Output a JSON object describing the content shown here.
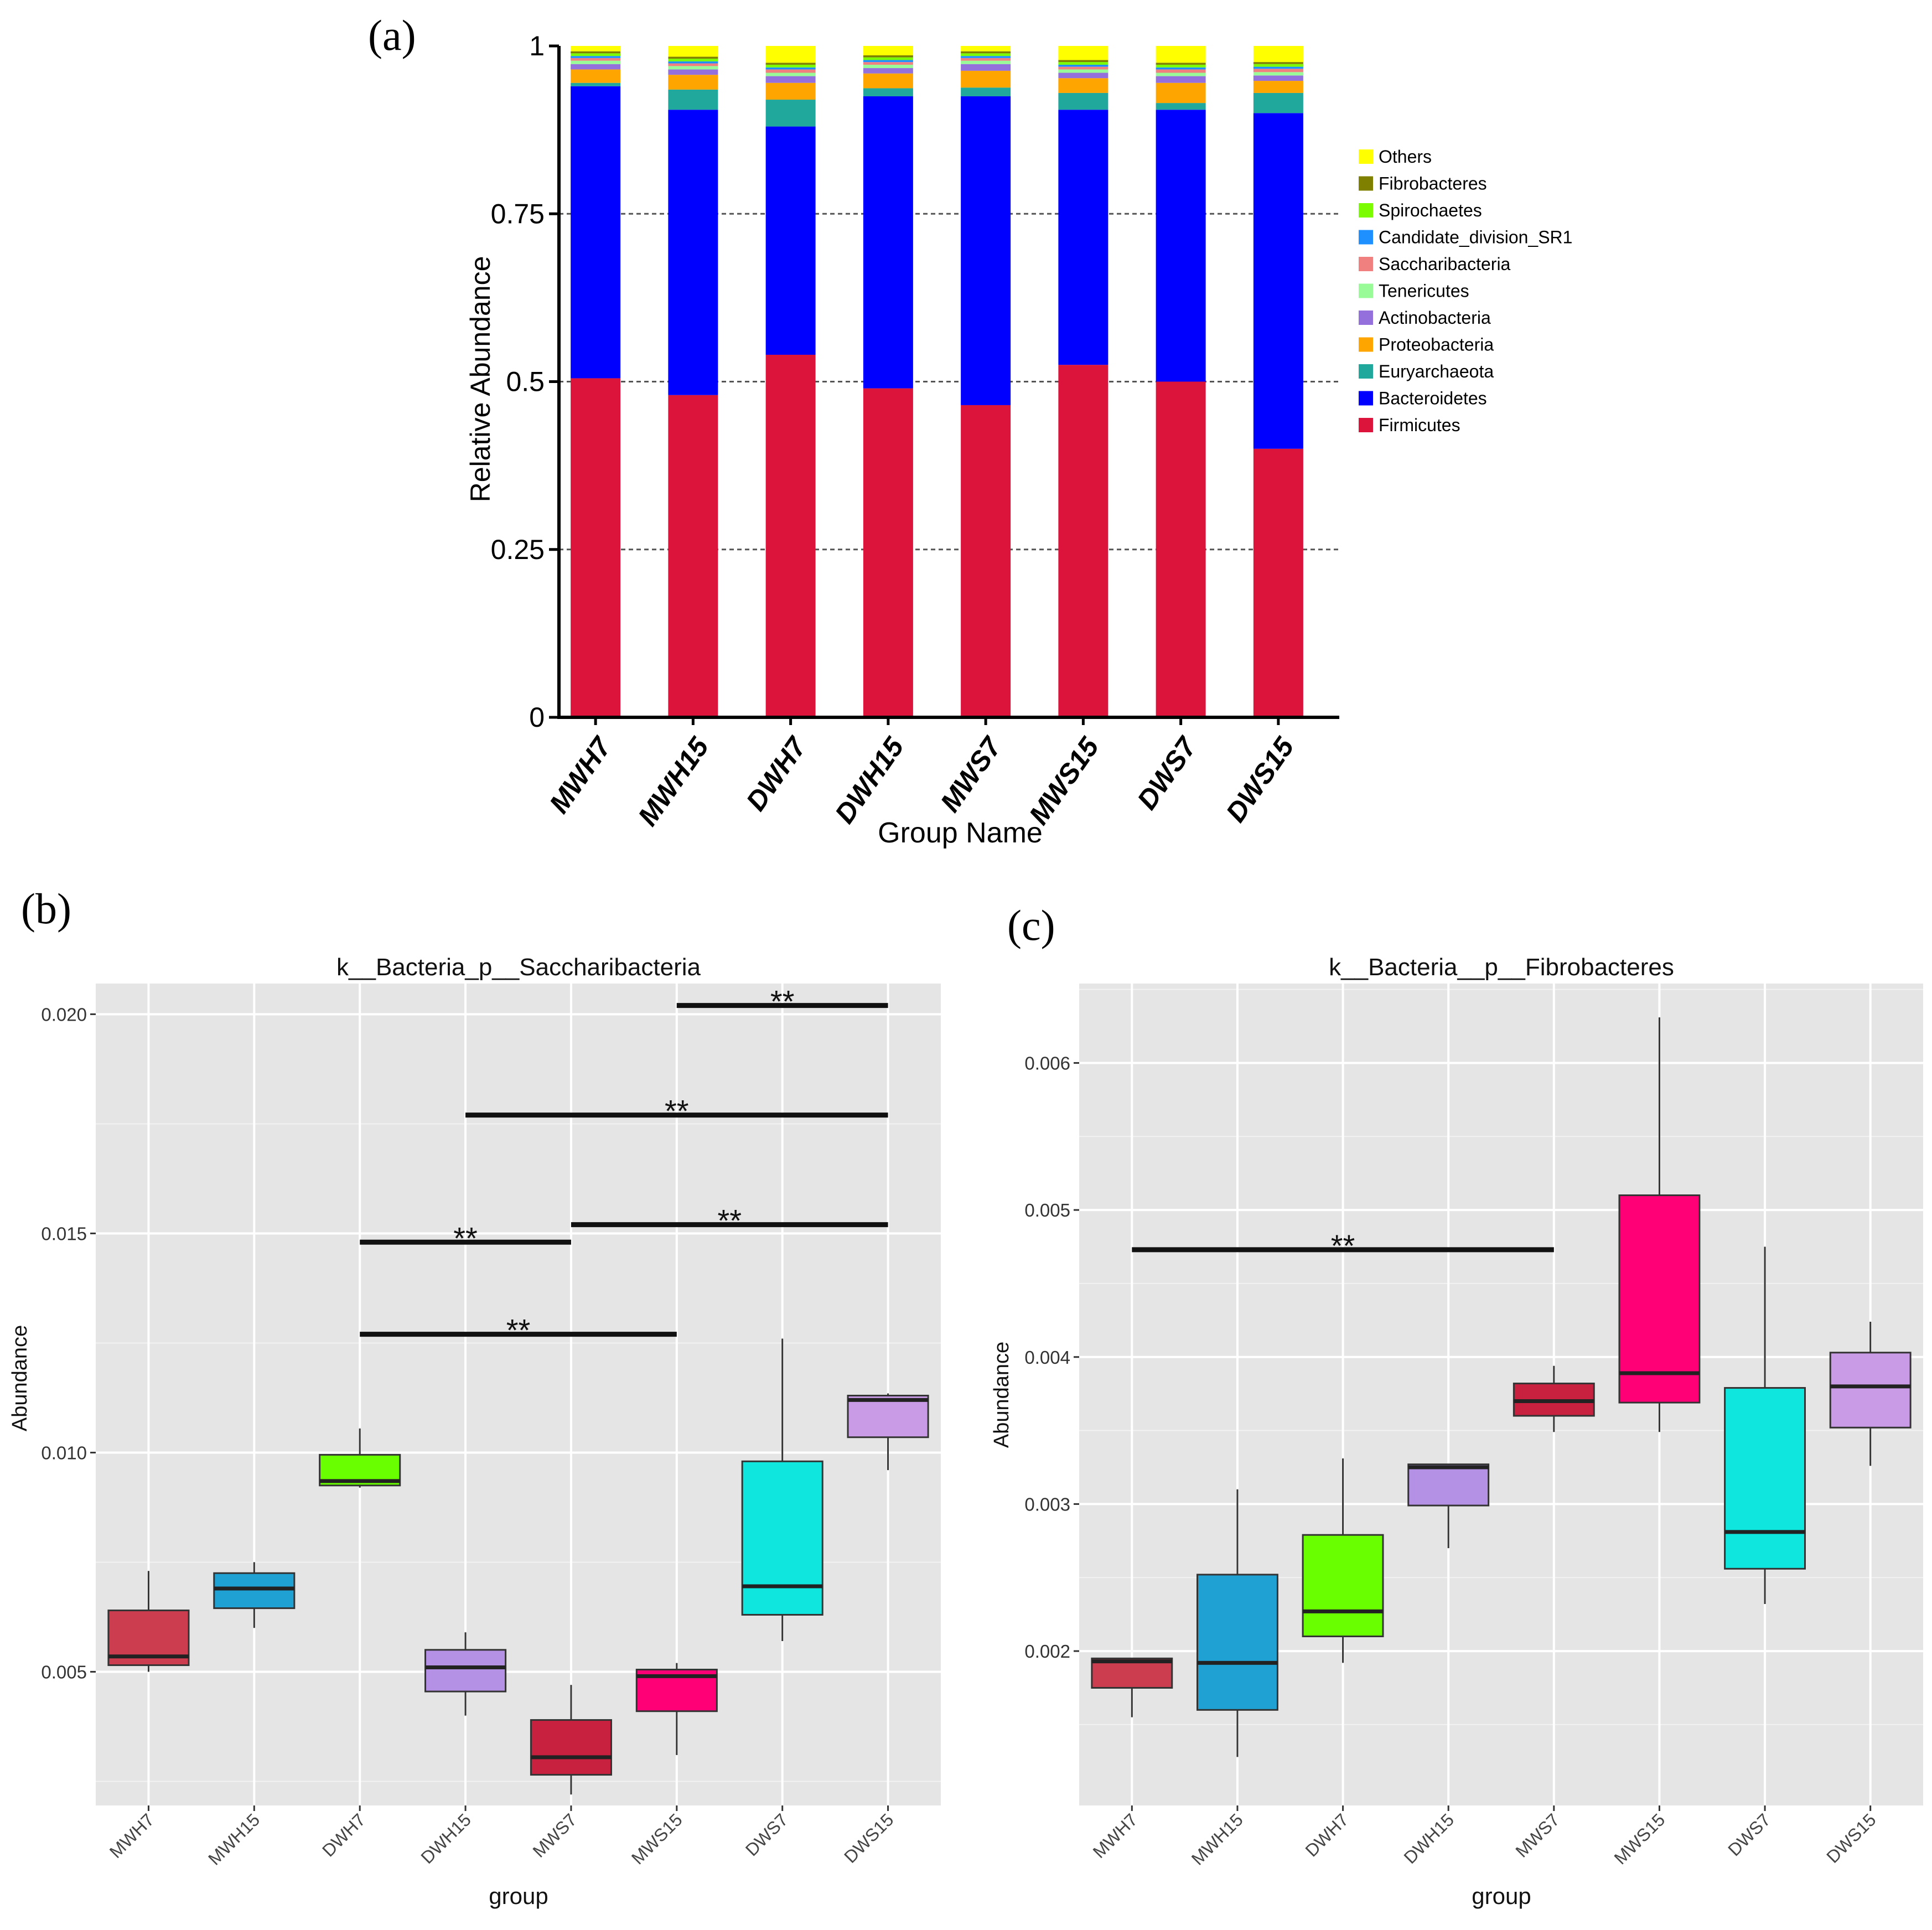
{
  "panel_labels": {
    "a": "(a)",
    "b": "(b)",
    "c": "(c)"
  },
  "chart_data": [
    {
      "id": "a",
      "type": "bar",
      "stacked": true,
      "title": "",
      "xlabel": "Group Name",
      "ylabel": "Relative Abundance",
      "ylim": [
        0,
        1
      ],
      "yticks": [
        0,
        0.25,
        0.5,
        0.75,
        1
      ],
      "ytick_labels": [
        "0",
        "0.25",
        "0.5",
        "0.75",
        "1"
      ],
      "grid": "dashed at 0.25, 0.5, 0.75",
      "legend_position": "right",
      "categories": [
        "MWH7",
        "MWH15",
        "DWH7",
        "DWH15",
        "MWS7",
        "MWS15",
        "DWS7",
        "DWS15"
      ],
      "series": [
        {
          "name": "Firmicutes",
          "color": "#dc143c",
          "values": [
            0.505,
            0.48,
            0.54,
            0.49,
            0.465,
            0.525,
            0.5,
            0.4
          ]
        },
        {
          "name": "Bacteroidetes",
          "color": "#0000ff",
          "values": [
            0.435,
            0.425,
            0.34,
            0.435,
            0.46,
            0.38,
            0.405,
            0.5
          ]
        },
        {
          "name": "Euryarchaeota",
          "color": "#20a89c",
          "values": [
            0.005,
            0.03,
            0.04,
            0.012,
            0.013,
            0.025,
            0.01,
            0.03
          ]
        },
        {
          "name": "Proteobacteria",
          "color": "#ffa500",
          "values": [
            0.02,
            0.022,
            0.025,
            0.022,
            0.025,
            0.022,
            0.03,
            0.018
          ]
        },
        {
          "name": "Actinobacteria",
          "color": "#9370db",
          "values": [
            0.008,
            0.008,
            0.01,
            0.008,
            0.01,
            0.008,
            0.01,
            0.008
          ]
        },
        {
          "name": "Tenericutes",
          "color": "#98fb98",
          "values": [
            0.005,
            0.005,
            0.005,
            0.005,
            0.005,
            0.005,
            0.005,
            0.005
          ]
        },
        {
          "name": "Saccharibacteria",
          "color": "#f08080",
          "values": [
            0.004,
            0.004,
            0.005,
            0.004,
            0.004,
            0.004,
            0.005,
            0.005
          ]
        },
        {
          "name": "Candidate_division_SR1",
          "color": "#1e90ff",
          "values": [
            0.003,
            0.003,
            0.003,
            0.003,
            0.003,
            0.003,
            0.003,
            0.003
          ]
        },
        {
          "name": "Spirochaetes",
          "color": "#7cfc00",
          "values": [
            0.004,
            0.004,
            0.004,
            0.004,
            0.004,
            0.004,
            0.004,
            0.004
          ]
        },
        {
          "name": "Fibrobacteres",
          "color": "#808000",
          "values": [
            0.003,
            0.003,
            0.003,
            0.003,
            0.003,
            0.003,
            0.003,
            0.003
          ]
        },
        {
          "name": "Others",
          "color": "#ffff00",
          "values": [
            0.008,
            0.016,
            0.025,
            0.014,
            0.008,
            0.021,
            0.025,
            0.024
          ]
        }
      ],
      "legend_order": [
        "Others",
        "Fibrobacteres",
        "Spirochaetes",
        "Candidate_division_SR1",
        "Saccharibacteria",
        "Tenericutes",
        "Actinobacteria",
        "Proteobacteria",
        "Euryarchaeota",
        "Bacteroidetes",
        "Firmicutes"
      ]
    },
    {
      "id": "b",
      "type": "boxplot",
      "title": "k__Bacteria_p__Saccharibacteria",
      "xlabel": "group",
      "ylabel": "Abundance",
      "ylim": [
        0.00195,
        0.0207
      ],
      "yticks": [
        0.005,
        0.01,
        0.015,
        0.02
      ],
      "ytick_labels": [
        "0.005",
        "0.010",
        "0.015",
        "0.020"
      ],
      "categories": [
        "MWH7",
        "MWH15",
        "DWH7",
        "DWH15",
        "MWS7",
        "MWS15",
        "DWS7",
        "DWS15"
      ],
      "boxes": [
        {
          "min": 0.005,
          "q1": 0.00515,
          "median": 0.00535,
          "q3": 0.0064,
          "max": 0.0073,
          "color": "#cc3d50"
        },
        {
          "min": 0.006,
          "q1": 0.00645,
          "median": 0.0069,
          "q3": 0.00725,
          "max": 0.0075,
          "color": "#1fa1d4"
        },
        {
          "min": 0.0092,
          "q1": 0.00925,
          "median": 0.00935,
          "q3": 0.00995,
          "max": 0.01055,
          "color": "#6aff00"
        },
        {
          "min": 0.004,
          "q1": 0.00455,
          "median": 0.0051,
          "q3": 0.0055,
          "max": 0.0059,
          "color": "#b591e6"
        },
        {
          "min": 0.0022,
          "q1": 0.00265,
          "median": 0.00305,
          "q3": 0.0039,
          "max": 0.0047,
          "color": "#c8203f"
        },
        {
          "min": 0.0031,
          "q1": 0.0041,
          "median": 0.0049,
          "q3": 0.00505,
          "max": 0.0052,
          "color": "#ff0077"
        },
        {
          "min": 0.0057,
          "q1": 0.0063,
          "median": 0.00695,
          "q3": 0.0098,
          "max": 0.0126,
          "color": "#0ee6de"
        },
        {
          "min": 0.0096,
          "q1": 0.01035,
          "median": 0.0112,
          "q3": 0.0113,
          "max": 0.01135,
          "color": "#c99ae6"
        }
      ],
      "significance": [
        {
          "from": "MWS15",
          "to": "DWS15",
          "y": 0.0202,
          "label": "**"
        },
        {
          "from": "DWH15",
          "to": "DWS15",
          "y": 0.0177,
          "label": "**"
        },
        {
          "from": "DWH7",
          "to": "MWS7",
          "y": 0.0148,
          "label": "**"
        },
        {
          "from": "MWS7",
          "to": "DWS15",
          "y": 0.0152,
          "label": "**"
        },
        {
          "from": "DWH7",
          "to": "MWS15",
          "y": 0.0127,
          "label": "**"
        }
      ]
    },
    {
      "id": "c",
      "type": "boxplot",
      "title": "k__Bacteria__p__Fibrobacteres",
      "xlabel": "group",
      "ylabel": "Abundance",
      "ylim": [
        0.00095,
        0.00654
      ],
      "yticks": [
        0.002,
        0.003,
        0.004,
        0.005,
        0.006
      ],
      "ytick_labels": [
        "0.002",
        "0.003",
        "0.004",
        "0.005",
        "0.006"
      ],
      "categories": [
        "MWH7",
        "MWH15",
        "DWH7",
        "DWH15",
        "MWS7",
        "MWS15",
        "DWS7",
        "DWS15"
      ],
      "boxes": [
        {
          "min": 0.00155,
          "q1": 0.00175,
          "median": 0.00193,
          "q3": 0.00195,
          "max": 0.00195,
          "color": "#cc3d50"
        },
        {
          "min": 0.00128,
          "q1": 0.0016,
          "median": 0.00192,
          "q3": 0.00252,
          "max": 0.0031,
          "color": "#1fa1d4"
        },
        {
          "min": 0.00192,
          "q1": 0.0021,
          "median": 0.00227,
          "q3": 0.00279,
          "max": 0.00331,
          "color": "#6aff00"
        },
        {
          "min": 0.0027,
          "q1": 0.00299,
          "median": 0.00325,
          "q3": 0.00327,
          "max": 0.00327,
          "color": "#b591e6"
        },
        {
          "min": 0.00349,
          "q1": 0.0036,
          "median": 0.0037,
          "q3": 0.00382,
          "max": 0.00394,
          "color": "#c8203f"
        },
        {
          "min": 0.00349,
          "q1": 0.00369,
          "median": 0.00389,
          "q3": 0.0051,
          "max": 0.00631,
          "color": "#ff0077"
        },
        {
          "min": 0.00232,
          "q1": 0.00256,
          "median": 0.00281,
          "q3": 0.00379,
          "max": 0.00475,
          "color": "#0ee6de"
        },
        {
          "min": 0.00326,
          "q1": 0.00352,
          "median": 0.0038,
          "q3": 0.00403,
          "max": 0.00424,
          "color": "#c99ae6"
        }
      ],
      "significance": [
        {
          "from": "MWH7",
          "to": "MWS7",
          "y": 0.00473,
          "label": "**"
        }
      ]
    }
  ]
}
